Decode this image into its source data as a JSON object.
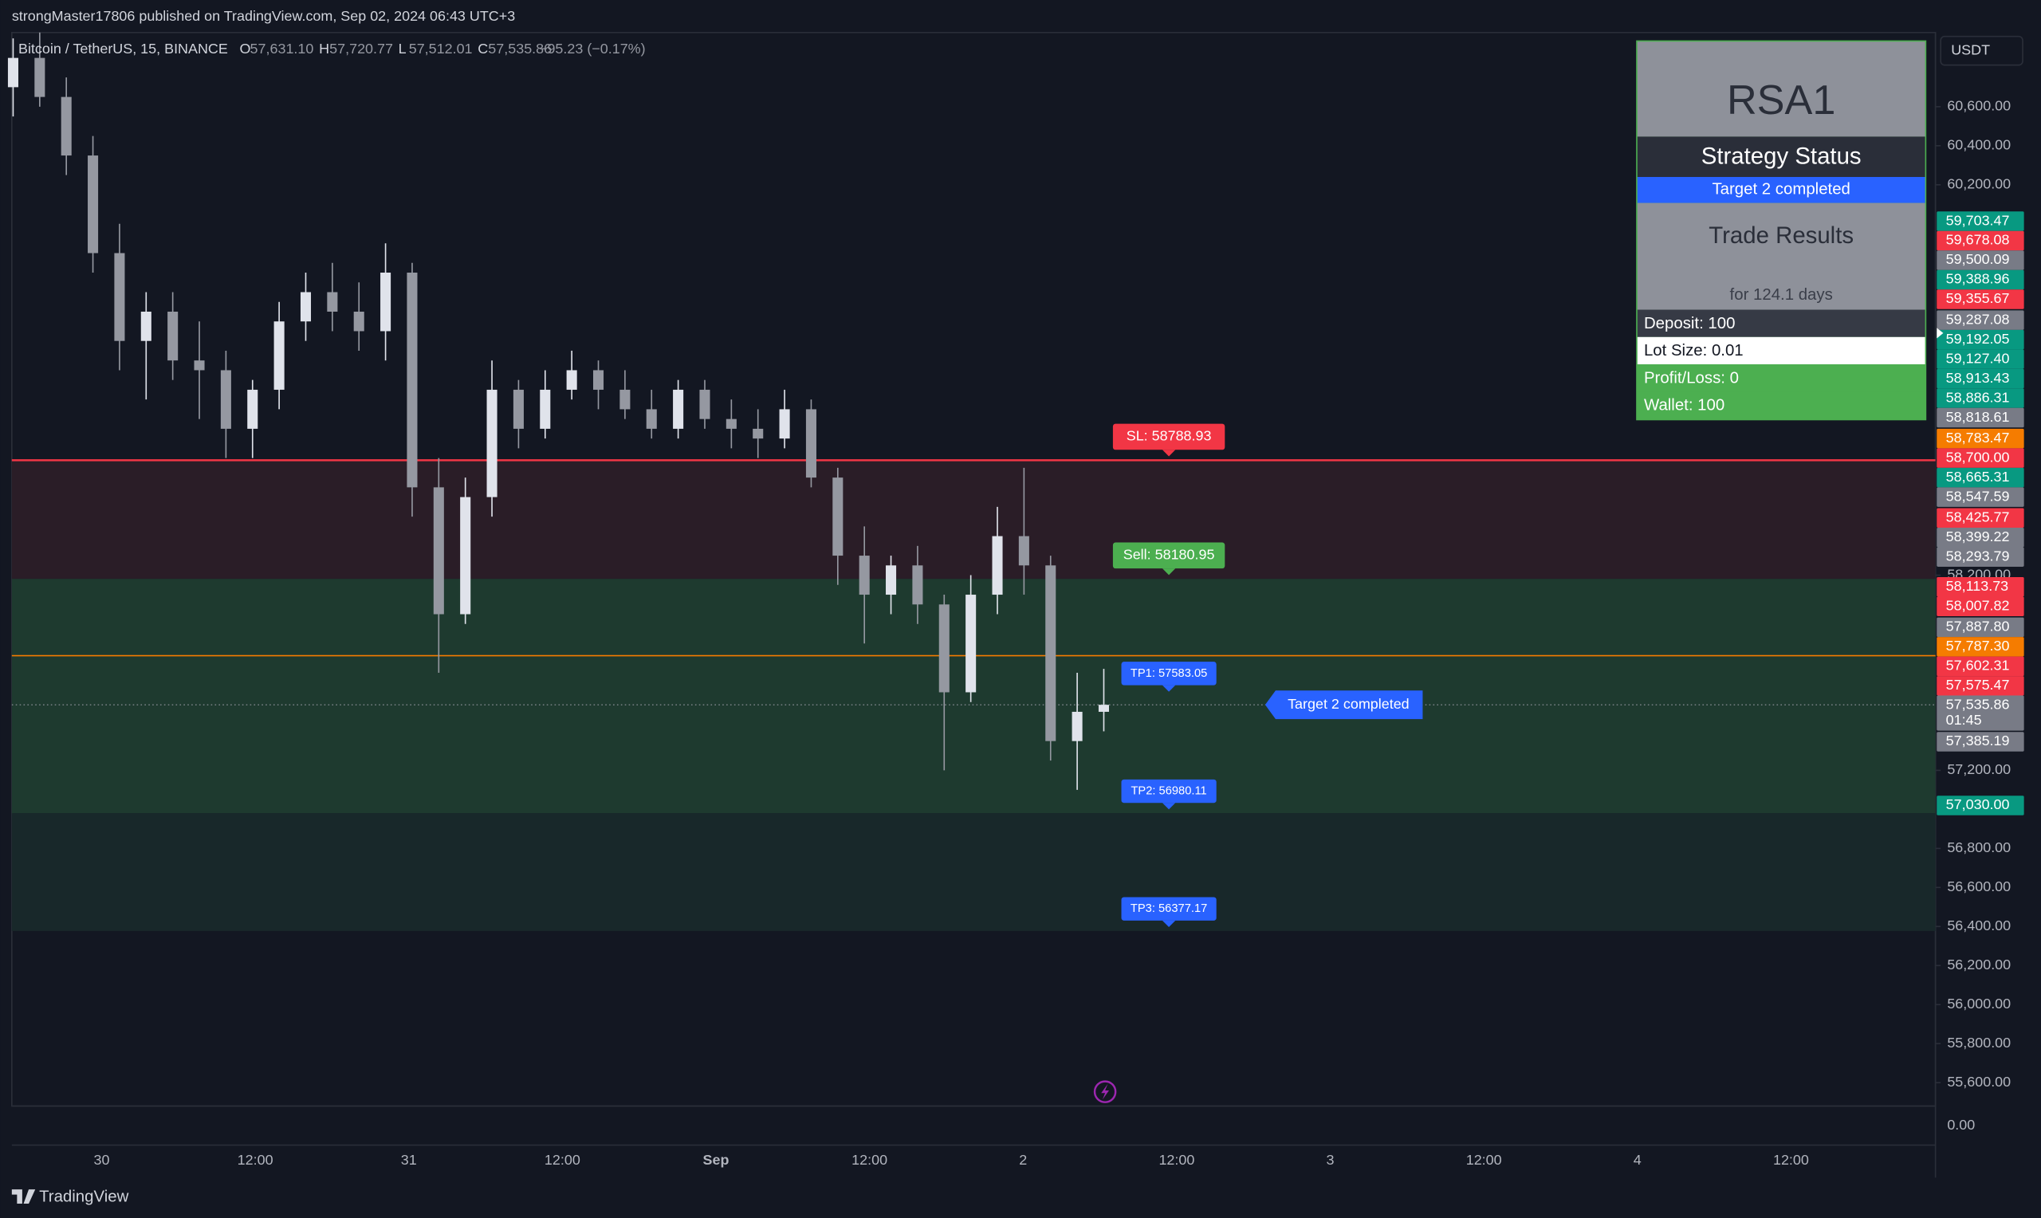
{
  "header": {
    "publisher": "strongMaster17806 published on TradingView.com, Sep 02, 2024 06:43 UTC+3",
    "symbol": "Bitcoin / TetherUS, 15, BINANCE",
    "ohlc": [
      {
        "key": "O",
        "text": "57,631.10"
      },
      {
        "key": "H",
        "text": "57,720.77"
      },
      {
        "key": "L",
        "text": "57,512.01"
      },
      {
        "key": "C",
        "text": "57,535.86"
      }
    ],
    "change": "−95.23 (−0.17%)"
  },
  "currency": "USDT",
  "footer": "TradingView",
  "panel": {
    "title": "RSA1",
    "status_heading": "Strategy Status",
    "status": "Target 2 completed",
    "results_heading": "Trade Results",
    "duration": "for 124.1 days",
    "rows": [
      {
        "text": "Deposit: 100",
        "bg": "#363a45",
        "fg": "#ffffff"
      },
      {
        "text": "Lot Size: 0.01",
        "bg": "#ffffff",
        "fg": "#131722"
      },
      {
        "text": "Profit/Loss: 0",
        "bg": "#4caf50",
        "fg": "#ffffff"
      },
      {
        "text": "Wallet: 100",
        "bg": "#4caf50",
        "fg": "#ffffff"
      }
    ]
  },
  "chart_data": {
    "type": "candlestick",
    "up_color": "#e0e3eb",
    "down_color": "#9598a1",
    "candles": {
      "open": [
        60700,
        60850,
        60650,
        60350,
        59850,
        59400,
        59550,
        59300,
        59250,
        58950,
        59150,
        59500,
        59650,
        59550,
        59450,
        59750,
        58650,
        58000,
        58600,
        59150,
        58950,
        59150,
        59250,
        59150,
        59050,
        58950,
        59150,
        59000,
        58950,
        58900,
        59050,
        58700,
        58300,
        58100,
        58250,
        58050,
        57600,
        58100,
        58400,
        58250,
        57350,
        57500
      ],
      "high": [
        60950,
        60980,
        60750,
        60450,
        60000,
        59650,
        59650,
        59500,
        59350,
        59200,
        59600,
        59750,
        59800,
        59700,
        59900,
        59800,
        58800,
        58700,
        59300,
        59200,
        59250,
        59350,
        59300,
        59250,
        59150,
        59200,
        59200,
        59100,
        59050,
        59150,
        59100,
        58750,
        58450,
        58300,
        58350,
        58100,
        58200,
        58550,
        58750,
        58300,
        57700,
        57720
      ],
      "low": [
        60550,
        60600,
        60250,
        59750,
        59250,
        59100,
        59200,
        59000,
        58800,
        58800,
        59050,
        59400,
        59450,
        59350,
        59300,
        58500,
        57700,
        57950,
        58500,
        58850,
        58900,
        59100,
        59050,
        59000,
        58900,
        58900,
        58950,
        58850,
        58800,
        58850,
        58650,
        58150,
        57850,
        58000,
        57950,
        57200,
        57550,
        58000,
        58100,
        57250,
        57100,
        57400
      ],
      "close": [
        60850,
        60650,
        60350,
        59850,
        59400,
        59550,
        59300,
        59250,
        58950,
        59150,
        59500,
        59650,
        59550,
        59450,
        59750,
        58650,
        58000,
        58600,
        59150,
        58950,
        59150,
        59250,
        59150,
        59050,
        58950,
        59150,
        59000,
        58950,
        58900,
        59050,
        58700,
        58300,
        58100,
        58250,
        58050,
        57600,
        58100,
        58400,
        58250,
        57350,
        57500,
        57535.86
      ]
    },
    "ylim": [
      55480,
      60980
    ],
    "yticks": [
      {
        "value": 60600,
        "label": "60,600.00"
      },
      {
        "value": 60400,
        "label": "60,400.00"
      },
      {
        "value": 60200,
        "label": "60,200.00"
      },
      {
        "value": 58200,
        "label": "58,200.00"
      },
      {
        "value": 57200,
        "label": "57,200.00"
      },
      {
        "value": 56800,
        "label": "56,800.00"
      },
      {
        "value": 56600,
        "label": "56,600.00"
      },
      {
        "value": 56400,
        "label": "56,400.00"
      },
      {
        "value": 56200,
        "label": "56,200.00"
      },
      {
        "value": 56000,
        "label": "56,000.00"
      },
      {
        "value": 55800,
        "label": "55,800.00"
      },
      {
        "value": 55600,
        "label": "55,600.00"
      }
    ],
    "volume_axis_label": "0.00",
    "time_labels": [
      "30",
      "12:00",
      "31",
      "12:00",
      "Sep",
      "12:00",
      "2",
      "12:00",
      "3",
      "12:00",
      "4",
      "12:00"
    ],
    "zones": [
      {
        "from": 58788.93,
        "to": 58180.95,
        "color": "#2a1d27"
      },
      {
        "from": 58180.95,
        "to": 56980.11,
        "color": "#1e3a2f"
      },
      {
        "from": 56980.11,
        "to": 56377.17,
        "color": "#18282a"
      }
    ],
    "levels": [
      {
        "label": "SL: 58788.93",
        "value": 58788.93,
        "color": "#f23645",
        "line": true
      },
      {
        "label": "Sell: 58180.95",
        "value": 58180.95,
        "color": "#4caf50",
        "line": false
      },
      {
        "label": "TP1: 57583.05",
        "value": 57583.05,
        "color": "#2962ff",
        "line": false
      },
      {
        "label": "TP2: 56980.11",
        "value": 56980.11,
        "color": "#2962ff",
        "line": false
      },
      {
        "label": "TP3: 56377.17",
        "value": 56377.17,
        "color": "#2962ff",
        "line": false
      }
    ],
    "hline": {
      "value": 57787.3,
      "color": "#f57c00"
    },
    "last_price": 57535.86,
    "annotation": "Target 2 completed",
    "countdown": "01:45",
    "price_labels": [
      {
        "value": 59703.47,
        "label": "59,703.47",
        "color": "#089981"
      },
      {
        "value": 59678.08,
        "label": "59,678.08",
        "color": "#f23645"
      },
      {
        "value": 59500.09,
        "label": "59,500.09",
        "color": "#787b86"
      },
      {
        "value": 59388.96,
        "label": "59,388.96",
        "color": "#089981"
      },
      {
        "value": 59355.67,
        "label": "59,355.67",
        "color": "#f23645"
      },
      {
        "value": 59287.08,
        "label": "59,287.08",
        "color": "#787b86"
      },
      {
        "value": 59192.05,
        "label": "59,192.05",
        "color": "#089981"
      },
      {
        "value": 59127.4,
        "label": "59,127.40",
        "color": "#089981"
      },
      {
        "value": 58913.43,
        "label": "58,913.43",
        "color": "#089981"
      },
      {
        "value": 58886.31,
        "label": "58,886.31",
        "color": "#089981"
      },
      {
        "value": 58818.61,
        "label": "58,818.61",
        "color": "#787b86"
      },
      {
        "value": 58783.47,
        "label": "58,783.47",
        "color": "#f57c00"
      },
      {
        "value": 58700,
        "label": "58,700.00",
        "color": "#f23645"
      },
      {
        "value": 58665.31,
        "label": "58,665.31",
        "color": "#089981"
      },
      {
        "value": 58547.59,
        "label": "58,547.59",
        "color": "#787b86"
      },
      {
        "value": 58425.77,
        "label": "58,425.77",
        "color": "#f23645"
      },
      {
        "value": 58399.22,
        "label": "58,399.22",
        "color": "#787b86"
      },
      {
        "value": 58293.79,
        "label": "58,293.79",
        "color": "#787b86"
      },
      {
        "value": 58113.73,
        "label": "58,113.73",
        "color": "#f23645"
      },
      {
        "value": 58007.82,
        "label": "58,007.82",
        "color": "#f23645"
      },
      {
        "value": 57887.8,
        "label": "57,887.80",
        "color": "#787b86"
      },
      {
        "value": 57787.3,
        "label": "57,787.30",
        "color": "#f57c00"
      },
      {
        "value": 57602.31,
        "label": "57,602.31",
        "color": "#f23645"
      },
      {
        "value": 57575.47,
        "label": "57,575.47",
        "color": "#f23645"
      },
      {
        "value": 57535.86,
        "label": "57,535.86",
        "color": "#787b86"
      },
      {
        "value": 57385.19,
        "label": "57,385.19",
        "color": "#787b86"
      },
      {
        "value": 57030,
        "label": "57,030.00",
        "color": "#089981"
      }
    ]
  }
}
